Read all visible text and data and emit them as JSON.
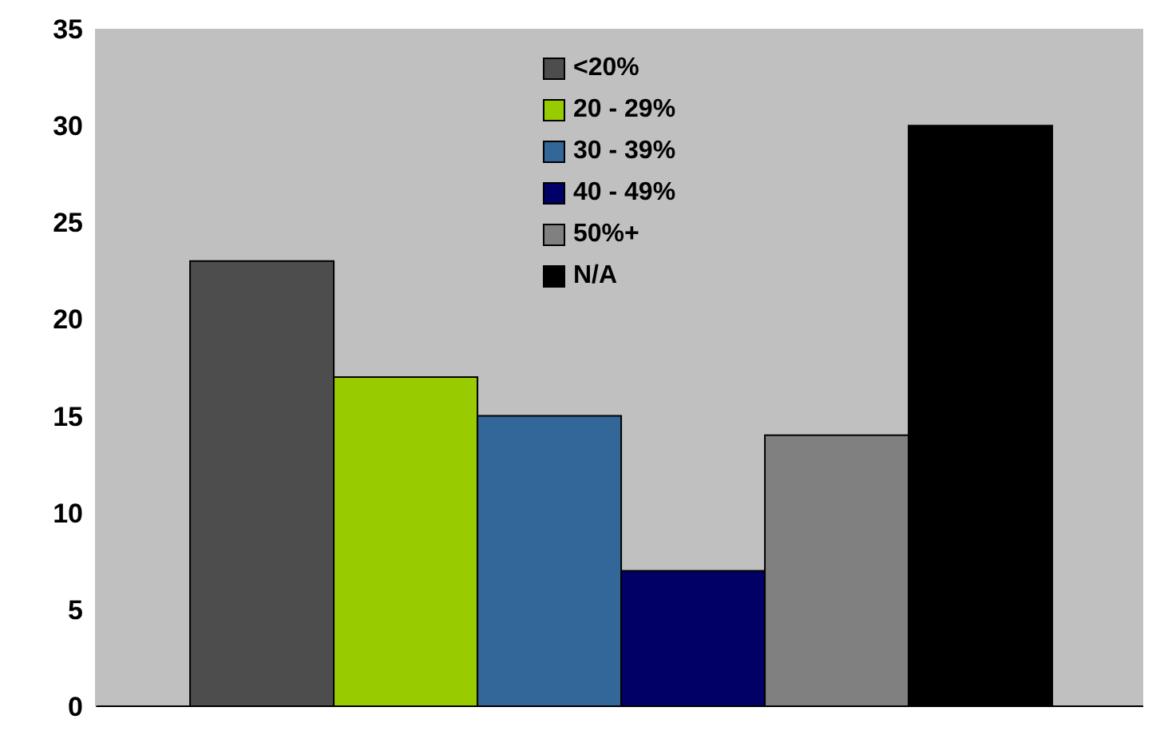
{
  "chart_data": {
    "type": "bar",
    "categories": [
      null
    ],
    "series": [
      {
        "name": "<20%",
        "color": "#4d4d4d",
        "values": [
          23
        ]
      },
      {
        "name": "20 - 29%",
        "color": "#99cc00",
        "values": [
          17
        ]
      },
      {
        "name": "30 - 39%",
        "color": "#336699",
        "values": [
          15
        ]
      },
      {
        "name": "40 - 49%",
        "color": "#000066",
        "values": [
          7
        ]
      },
      {
        "name": "50%+",
        "color": "#808080",
        "values": [
          14
        ]
      },
      {
        "name": "N/A",
        "color": "#000000",
        "values": [
          30
        ]
      }
    ],
    "ylim": [
      0,
      35
    ],
    "yticks": [
      0,
      5,
      10,
      15,
      20,
      25,
      30,
      35
    ],
    "grid": false,
    "legend": "top"
  }
}
